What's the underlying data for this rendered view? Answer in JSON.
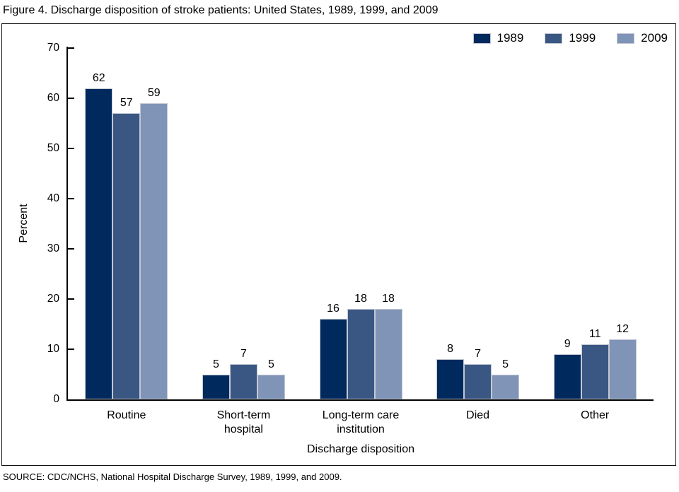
{
  "figure": {
    "source": "SOURCE: CDC/NCHS, National Hospital Discharge Survey, 1989, 1999, and 2009."
  },
  "chart_data": {
    "type": "bar",
    "title": "Figure 4. Discharge disposition of stroke patients: United States, 1989, 1999, and 2009",
    "categories": [
      "Routine",
      "Short-term\nhospital",
      "Long-term care\ninstitution",
      "Died",
      "Other"
    ],
    "series": [
      {
        "name": "1989",
        "color": "#002a5e",
        "values": [
          62,
          5,
          16,
          8,
          9
        ]
      },
      {
        "name": "1999",
        "color": "#3a5784",
        "values": [
          57,
          7,
          18,
          7,
          11
        ]
      },
      {
        "name": "2009",
        "color": "#8094b8",
        "values": [
          59,
          5,
          18,
          5,
          12
        ]
      }
    ],
    "xlabel": "Discharge disposition",
    "ylabel": "Percent",
    "ylim": [
      0,
      70
    ],
    "ytick_step": 10,
    "grid": false,
    "legend_position": "top-right"
  }
}
